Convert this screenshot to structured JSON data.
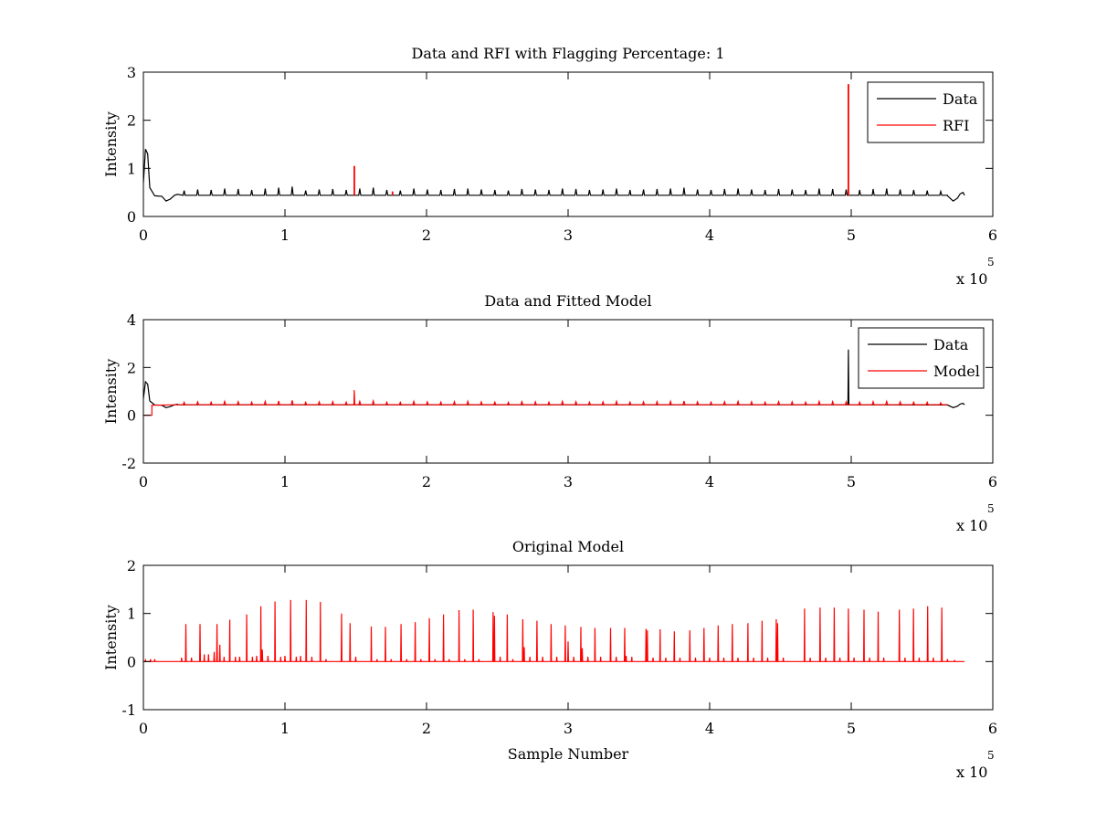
{
  "chart_data": [
    {
      "type": "line",
      "title": "Data and RFI with Flagging Percentage: 1",
      "xlabel": "",
      "ylabel": "Intensity",
      "xlim": [
        0,
        600000
      ],
      "ylim": [
        0,
        3
      ],
      "xticks": [
        0,
        1,
        2,
        3,
        4,
        5,
        6
      ],
      "yticks": [
        0,
        1,
        2,
        3
      ],
      "x_exponent_label": "x 10",
      "x_exponent_power": "5",
      "legend_position": "top-right",
      "grid": false,
      "series": [
        {
          "name": "Data",
          "color": "#000000",
          "baseline": 0.44,
          "startup": [
            [
              0,
              0.7
            ],
            [
              1500,
              1.4
            ],
            [
              3000,
              1.3
            ],
            [
              4500,
              0.6
            ],
            [
              8000,
              0.43
            ],
            [
              13000,
              0.42
            ],
            [
              16000,
              0.32
            ],
            [
              19000,
              0.36
            ],
            [
              22000,
              0.44
            ],
            [
              24000,
              0.46
            ]
          ],
          "ending": [
            [
              568000,
              0.43
            ],
            [
              572000,
              0.32
            ],
            [
              575000,
              0.38
            ],
            [
              577000,
              0.47
            ],
            [
              579000,
              0.5
            ],
            [
              580000,
              0.44
            ]
          ],
          "spike_heights": [
            0.54,
            0.56,
            0.55,
            0.58,
            0.57,
            0.55,
            0.58,
            0.6,
            0.62,
            0.54,
            0.56,
            0.57,
            0.55,
            0.58,
            0.6,
            0.55,
            0.54,
            0.58,
            0.56,
            0.55,
            0.57,
            0.58,
            0.56,
            0.55,
            0.54,
            0.57,
            0.56,
            0.55,
            0.58,
            0.57,
            0.55,
            0.56,
            0.58,
            0.55,
            0.56,
            0.57,
            0.58,
            0.6,
            0.56,
            0.55,
            0.57,
            0.58,
            0.56,
            0.55,
            0.57,
            0.56,
            0.55,
            0.58,
            0.57,
            0.56,
            0.55,
            0.57,
            0.58,
            0.56,
            0.55,
            0.54,
            0.52
          ],
          "spike_start": 24000,
          "spike_end": 568000
        },
        {
          "name": "RFI",
          "color": "#ff0000",
          "points": [
            [
              149000,
              1.05
            ],
            [
              176000,
              0.52
            ],
            [
              498000,
              2.75
            ]
          ]
        }
      ]
    },
    {
      "type": "line",
      "title": "Data and Fitted Model",
      "xlabel": "",
      "ylabel": "Intensity",
      "xlim": [
        0,
        600000
      ],
      "ylim": [
        -2,
        4
      ],
      "xticks": [
        0,
        1,
        2,
        3,
        4,
        5,
        6
      ],
      "yticks": [
        -2,
        0,
        2,
        4
      ],
      "x_exponent_label": "x 10",
      "x_exponent_power": "5",
      "legend_position": "top-right",
      "grid": false,
      "series": [
        {
          "name": "Data",
          "color": "#000000",
          "baseline": 0.44,
          "startup": [
            [
              0,
              0.7
            ],
            [
              1500,
              1.4
            ],
            [
              3000,
              1.3
            ],
            [
              4500,
              0.6
            ],
            [
              8000,
              0.43
            ],
            [
              13000,
              0.42
            ],
            [
              16000,
              0.32
            ],
            [
              19000,
              0.36
            ],
            [
              22000,
              0.44
            ],
            [
              24000,
              0.46
            ]
          ],
          "ending": [
            [
              568000,
              0.43
            ],
            [
              572000,
              0.32
            ],
            [
              575000,
              0.38
            ],
            [
              577000,
              0.47
            ],
            [
              579000,
              0.5
            ],
            [
              580000,
              0.44
            ]
          ],
          "extra_spikes": [
            [
              498000,
              2.75
            ]
          ]
        },
        {
          "name": "Model",
          "color": "#ff0000",
          "baseline": 0.44,
          "startup": [
            [
              0,
              0
            ],
            [
              6000,
              0
            ],
            [
              6000,
              0.42
            ],
            [
              24000,
              0.44
            ]
          ],
          "spike_heights": [
            0.54,
            0.56,
            0.55,
            0.58,
            0.57,
            0.55,
            0.58,
            0.6,
            0.62,
            0.54,
            0.56,
            0.57,
            0.55,
            0.58,
            0.6,
            0.55,
            0.54,
            0.58,
            0.56,
            0.55,
            0.57,
            0.58,
            0.56,
            0.55,
            0.54,
            0.57,
            0.56,
            0.55,
            0.58,
            0.57,
            0.55,
            0.56,
            0.58,
            0.55,
            0.56,
            0.57,
            0.58,
            0.6,
            0.56,
            0.55,
            0.57,
            0.58,
            0.56,
            0.55,
            0.57,
            0.56,
            0.55,
            0.58,
            0.57,
            0.56,
            0.55,
            0.57,
            0.58,
            0.56,
            0.55,
            0.54,
            0.52
          ],
          "spike_start": 24000,
          "spike_end": 568000,
          "extra_spikes": [
            [
              149000,
              1.05
            ]
          ]
        }
      ]
    },
    {
      "type": "line",
      "title": "Original Model",
      "xlabel": "Sample Number",
      "ylabel": "Intensity",
      "xlim": [
        0,
        600000
      ],
      "ylim": [
        -1,
        2
      ],
      "xticks": [
        0,
        1,
        2,
        3,
        4,
        5,
        6
      ],
      "yticks": [
        -1,
        0,
        1,
        2
      ],
      "x_exponent_label": "x 10",
      "x_exponent_power": "5",
      "grid": false,
      "series": [
        {
          "color": "#ff0000",
          "baseline": 0,
          "x_end": 580000,
          "spikes": [
            [
              1500,
              0.03
            ],
            [
              5000,
              0.05
            ],
            [
              8000,
              0.05
            ],
            [
              27000,
              0.08
            ],
            [
              30000,
              0.78
            ],
            [
              34000,
              0.08
            ],
            [
              40000,
              0.78
            ],
            [
              43000,
              0.15
            ],
            [
              46000,
              0.15
            ],
            [
              50000,
              0.2
            ],
            [
              52000,
              0.78
            ],
            [
              54000,
              0.35
            ],
            [
              57000,
              0.1
            ],
            [
              61000,
              0.87
            ],
            [
              65000,
              0.1
            ],
            [
              68000,
              0.1
            ],
            [
              73000,
              0.98
            ],
            [
              77000,
              0.1
            ],
            [
              80000,
              0.12
            ],
            [
              83000,
              1.15
            ],
            [
              84000,
              0.25
            ],
            [
              88000,
              0.12
            ],
            [
              93000,
              1.25
            ],
            [
              97000,
              0.1
            ],
            [
              100000,
              0.12
            ],
            [
              104000,
              1.28
            ],
            [
              108000,
              0.1
            ],
            [
              111000,
              0.12
            ],
            [
              115000,
              1.28
            ],
            [
              119000,
              0.1
            ],
            [
              125000,
              1.24
            ],
            [
              129000,
              0.05
            ],
            [
              140000,
              1.0
            ],
            [
              146000,
              0.8
            ],
            [
              150000,
              0.1
            ],
            [
              161000,
              0.73
            ],
            [
              165000,
              0.05
            ],
            [
              171000,
              0.72
            ],
            [
              175000,
              0.05
            ],
            [
              182000,
              0.78
            ],
            [
              186000,
              0.05
            ],
            [
              192000,
              0.82
            ],
            [
              196000,
              0.05
            ],
            [
              202000,
              0.9
            ],
            [
              206000,
              0.05
            ],
            [
              212000,
              0.98
            ],
            [
              216000,
              0.05
            ],
            [
              223000,
              1.07
            ],
            [
              227000,
              0.05
            ],
            [
              233000,
              1.08
            ],
            [
              237000,
              0.05
            ],
            [
              247000,
              1.03
            ],
            [
              248000,
              0.95
            ],
            [
              252000,
              0.1
            ],
            [
              257000,
              0.98
            ],
            [
              261000,
              0.05
            ],
            [
              268000,
              0.88
            ],
            [
              269000,
              0.3
            ],
            [
              273000,
              0.1
            ],
            [
              278000,
              0.85
            ],
            [
              282000,
              0.1
            ],
            [
              288000,
              0.78
            ],
            [
              292000,
              0.1
            ],
            [
              298000,
              0.75
            ],
            [
              300000,
              0.42
            ],
            [
              304000,
              0.1
            ],
            [
              309000,
              0.72
            ],
            [
              310000,
              0.28
            ],
            [
              314000,
              0.1
            ],
            [
              319000,
              0.7
            ],
            [
              323000,
              0.1
            ],
            [
              330000,
              0.7
            ],
            [
              334000,
              0.1
            ],
            [
              340000,
              0.7
            ],
            [
              341000,
              0.12
            ],
            [
              345000,
              0.1
            ],
            [
              355000,
              0.68
            ],
            [
              356000,
              0.65
            ],
            [
              360000,
              0.08
            ],
            [
              365000,
              0.67
            ],
            [
              369000,
              0.08
            ],
            [
              375000,
              0.63
            ],
            [
              379000,
              0.08
            ],
            [
              386000,
              0.65
            ],
            [
              390000,
              0.08
            ],
            [
              396000,
              0.7
            ],
            [
              400000,
              0.08
            ],
            [
              406000,
              0.75
            ],
            [
              410000,
              0.08
            ],
            [
              416000,
              0.78
            ],
            [
              420000,
              0.08
            ],
            [
              427000,
              0.8
            ],
            [
              431000,
              0.08
            ],
            [
              437000,
              0.85
            ],
            [
              441000,
              0.08
            ],
            [
              447000,
              0.88
            ],
            [
              448000,
              0.8
            ],
            [
              452000,
              0.08
            ],
            [
              467000,
              1.1
            ],
            [
              471000,
              0.08
            ],
            [
              478000,
              1.12
            ],
            [
              482000,
              0.08
            ],
            [
              488000,
              1.12
            ],
            [
              492000,
              0.08
            ],
            [
              498000,
              1.1
            ],
            [
              502000,
              0.08
            ],
            [
              509000,
              1.08
            ],
            [
              513000,
              0.08
            ],
            [
              519000,
              1.04
            ],
            [
              523000,
              0.08
            ],
            [
              534000,
              1.08
            ],
            [
              538000,
              0.08
            ],
            [
              544000,
              1.1
            ],
            [
              548000,
              0.08
            ],
            [
              554000,
              1.15
            ],
            [
              558000,
              0.08
            ],
            [
              564000,
              1.12
            ],
            [
              568000,
              0.05
            ],
            [
              573000,
              0.03
            ]
          ]
        }
      ]
    }
  ]
}
